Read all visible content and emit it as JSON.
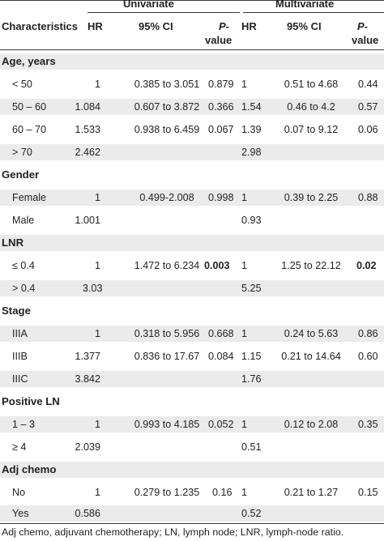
{
  "header": {
    "univariate": "Univariate",
    "multivariate": "Multivariate",
    "characteristics": "Characteristics",
    "hr": "HR",
    "ci": "95% CI",
    "p_top": "P-",
    "p_bottom": "value"
  },
  "rows": [
    {
      "type": "group",
      "label": "Age, years"
    },
    {
      "type": "data",
      "label": "< 50",
      "hr_u": "1",
      "ci_u": "0.385 to 3.051",
      "p_u": "0.879",
      "hr_m": "1",
      "ci_m": "0.51 to 4.68",
      "p_m": "0.44"
    },
    {
      "type": "data",
      "label": "50 – 60",
      "hr_u": "1.084",
      "ci_u": "0.607 to 3.872",
      "p_u": "0.366",
      "hr_m": "1.54",
      "ci_m": "0.46 to 4.2",
      "p_m": "0.57"
    },
    {
      "type": "data",
      "label": "60 – 70",
      "hr_u": "1.533",
      "ci_u": "0.938 to 6.459",
      "p_u": "0.067",
      "hr_m": "1.39",
      "ci_m": "0.07 to 9.12",
      "p_m": "0.06"
    },
    {
      "type": "data",
      "label": "> 70",
      "hr_u": "2.462",
      "ci_u": "",
      "p_u": "",
      "hr_m": "2.98",
      "ci_m": "",
      "p_m": ""
    },
    {
      "type": "group",
      "label": "Gender"
    },
    {
      "type": "data",
      "label": "Female",
      "hr_u": "1",
      "ci_u": "0.499-2.008",
      "p_u": "0.998",
      "hr_m": "1",
      "ci_m": "0.39 to 2.25",
      "p_m": "0.88"
    },
    {
      "type": "data",
      "label": "Male",
      "hr_u": "1.001",
      "ci_u": "",
      "p_u": "",
      "hr_m": "0.93",
      "ci_m": "",
      "p_m": ""
    },
    {
      "type": "group",
      "label": "LNR"
    },
    {
      "type": "data",
      "label": "≤ 0.4",
      "hr_u": "1",
      "ci_u": "1.472 to 6.234",
      "p_u": "0.003",
      "p_u_bold": true,
      "hr_m": "1",
      "ci_m": "1.25 to 22.12",
      "p_m": "0.02",
      "p_m_bold": true
    },
    {
      "type": "data",
      "label": "> 0.4",
      "hr_u": "3.03",
      "ci_u": "",
      "p_u": "",
      "hr_m": "5.25",
      "ci_m": "",
      "p_m": ""
    },
    {
      "type": "group",
      "label": "Stage"
    },
    {
      "type": "data",
      "label": "IIIA",
      "hr_u": "1",
      "ci_u": "0.318 to 5.956",
      "p_u": "0.668",
      "hr_m": "1",
      "ci_m": "0.24 to 5.63",
      "p_m": "0.86"
    },
    {
      "type": "data",
      "label": "IIIB",
      "hr_u": "1.377",
      "ci_u": "0.836 to 17.67",
      "p_u": "0.084",
      "hr_m": "1.15",
      "ci_m": "0.21 to 14.64",
      "p_m": "0.60"
    },
    {
      "type": "data",
      "label": "IIIC",
      "hr_u": "3.842",
      "ci_u": "",
      "p_u": "",
      "hr_m": "1.76",
      "ci_m": "",
      "p_m": ""
    },
    {
      "type": "group",
      "label": "Positive LN"
    },
    {
      "type": "data",
      "label": "1 – 3",
      "hr_u": "1",
      "ci_u": "0.993 to 4.185",
      "p_u": "0.052",
      "hr_m": "1",
      "ci_m": "0.12 to 2.08",
      "p_m": "0.35"
    },
    {
      "type": "data",
      "label": "≥ 4",
      "hr_u": "2.039",
      "ci_u": "",
      "p_u": "",
      "hr_m": "0.51",
      "ci_m": "",
      "p_m": ""
    },
    {
      "type": "group",
      "label": "Adj chemo"
    },
    {
      "type": "data",
      "label": "No",
      "hr_u": "1",
      "ci_u": "0.279 to 1.235",
      "p_u": "0.16",
      "hr_m": "1",
      "ci_m": "0.21 to 1.27",
      "p_m": "0.15"
    },
    {
      "type": "data",
      "label": "Yes",
      "hr_u": "0.586",
      "ci_u": "",
      "p_u": "",
      "hr_m": "0.52",
      "ci_m": "",
      "p_m": ""
    }
  ],
  "footnote": "Adj chemo, adjuvant chemotherapy; LN, lymph node; LNR, lymph-node ratio."
}
